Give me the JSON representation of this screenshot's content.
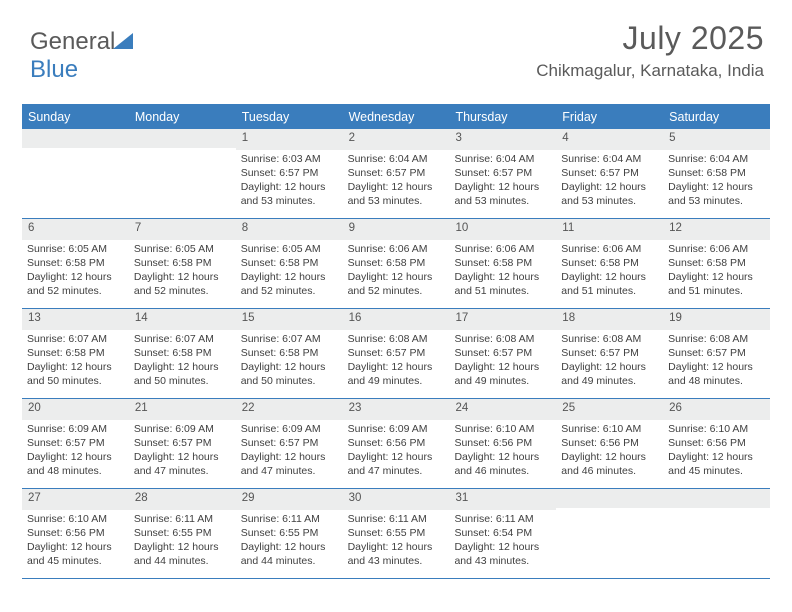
{
  "logo": {
    "text_part1": "General",
    "text_part2": "Blue"
  },
  "header": {
    "month_title": "July 2025",
    "location": "Chikmagalur, Karnataka, India"
  },
  "style": {
    "accent_color": "#3a7dbd",
    "daynum_bg": "#eceded",
    "text_color": "#404040",
    "page_bg": "#ffffff",
    "title_fontsize_pt": 24,
    "location_fontsize_pt": 13,
    "dayhead_fontsize_pt": 9.5,
    "cell_fontsize_pt": 8,
    "columns": 7,
    "rows": 5
  },
  "day_headers": [
    "Sunday",
    "Monday",
    "Tuesday",
    "Wednesday",
    "Thursday",
    "Friday",
    "Saturday"
  ],
  "weeks": [
    [
      {
        "n": "",
        "sr": "",
        "ss": "",
        "dl": ""
      },
      {
        "n": "",
        "sr": "",
        "ss": "",
        "dl": ""
      },
      {
        "n": "1",
        "sr": "Sunrise: 6:03 AM",
        "ss": "Sunset: 6:57 PM",
        "dl": "Daylight: 12 hours and 53 minutes."
      },
      {
        "n": "2",
        "sr": "Sunrise: 6:04 AM",
        "ss": "Sunset: 6:57 PM",
        "dl": "Daylight: 12 hours and 53 minutes."
      },
      {
        "n": "3",
        "sr": "Sunrise: 6:04 AM",
        "ss": "Sunset: 6:57 PM",
        "dl": "Daylight: 12 hours and 53 minutes."
      },
      {
        "n": "4",
        "sr": "Sunrise: 6:04 AM",
        "ss": "Sunset: 6:57 PM",
        "dl": "Daylight: 12 hours and 53 minutes."
      },
      {
        "n": "5",
        "sr": "Sunrise: 6:04 AM",
        "ss": "Sunset: 6:58 PM",
        "dl": "Daylight: 12 hours and 53 minutes."
      }
    ],
    [
      {
        "n": "6",
        "sr": "Sunrise: 6:05 AM",
        "ss": "Sunset: 6:58 PM",
        "dl": "Daylight: 12 hours and 52 minutes."
      },
      {
        "n": "7",
        "sr": "Sunrise: 6:05 AM",
        "ss": "Sunset: 6:58 PM",
        "dl": "Daylight: 12 hours and 52 minutes."
      },
      {
        "n": "8",
        "sr": "Sunrise: 6:05 AM",
        "ss": "Sunset: 6:58 PM",
        "dl": "Daylight: 12 hours and 52 minutes."
      },
      {
        "n": "9",
        "sr": "Sunrise: 6:06 AM",
        "ss": "Sunset: 6:58 PM",
        "dl": "Daylight: 12 hours and 52 minutes."
      },
      {
        "n": "10",
        "sr": "Sunrise: 6:06 AM",
        "ss": "Sunset: 6:58 PM",
        "dl": "Daylight: 12 hours and 51 minutes."
      },
      {
        "n": "11",
        "sr": "Sunrise: 6:06 AM",
        "ss": "Sunset: 6:58 PM",
        "dl": "Daylight: 12 hours and 51 minutes."
      },
      {
        "n": "12",
        "sr": "Sunrise: 6:06 AM",
        "ss": "Sunset: 6:58 PM",
        "dl": "Daylight: 12 hours and 51 minutes."
      }
    ],
    [
      {
        "n": "13",
        "sr": "Sunrise: 6:07 AM",
        "ss": "Sunset: 6:58 PM",
        "dl": "Daylight: 12 hours and 50 minutes."
      },
      {
        "n": "14",
        "sr": "Sunrise: 6:07 AM",
        "ss": "Sunset: 6:58 PM",
        "dl": "Daylight: 12 hours and 50 minutes."
      },
      {
        "n": "15",
        "sr": "Sunrise: 6:07 AM",
        "ss": "Sunset: 6:58 PM",
        "dl": "Daylight: 12 hours and 50 minutes."
      },
      {
        "n": "16",
        "sr": "Sunrise: 6:08 AM",
        "ss": "Sunset: 6:57 PM",
        "dl": "Daylight: 12 hours and 49 minutes."
      },
      {
        "n": "17",
        "sr": "Sunrise: 6:08 AM",
        "ss": "Sunset: 6:57 PM",
        "dl": "Daylight: 12 hours and 49 minutes."
      },
      {
        "n": "18",
        "sr": "Sunrise: 6:08 AM",
        "ss": "Sunset: 6:57 PM",
        "dl": "Daylight: 12 hours and 49 minutes."
      },
      {
        "n": "19",
        "sr": "Sunrise: 6:08 AM",
        "ss": "Sunset: 6:57 PM",
        "dl": "Daylight: 12 hours and 48 minutes."
      }
    ],
    [
      {
        "n": "20",
        "sr": "Sunrise: 6:09 AM",
        "ss": "Sunset: 6:57 PM",
        "dl": "Daylight: 12 hours and 48 minutes."
      },
      {
        "n": "21",
        "sr": "Sunrise: 6:09 AM",
        "ss": "Sunset: 6:57 PM",
        "dl": "Daylight: 12 hours and 47 minutes."
      },
      {
        "n": "22",
        "sr": "Sunrise: 6:09 AM",
        "ss": "Sunset: 6:57 PM",
        "dl": "Daylight: 12 hours and 47 minutes."
      },
      {
        "n": "23",
        "sr": "Sunrise: 6:09 AM",
        "ss": "Sunset: 6:56 PM",
        "dl": "Daylight: 12 hours and 47 minutes."
      },
      {
        "n": "24",
        "sr": "Sunrise: 6:10 AM",
        "ss": "Sunset: 6:56 PM",
        "dl": "Daylight: 12 hours and 46 minutes."
      },
      {
        "n": "25",
        "sr": "Sunrise: 6:10 AM",
        "ss": "Sunset: 6:56 PM",
        "dl": "Daylight: 12 hours and 46 minutes."
      },
      {
        "n": "26",
        "sr": "Sunrise: 6:10 AM",
        "ss": "Sunset: 6:56 PM",
        "dl": "Daylight: 12 hours and 45 minutes."
      }
    ],
    [
      {
        "n": "27",
        "sr": "Sunrise: 6:10 AM",
        "ss": "Sunset: 6:56 PM",
        "dl": "Daylight: 12 hours and 45 minutes."
      },
      {
        "n": "28",
        "sr": "Sunrise: 6:11 AM",
        "ss": "Sunset: 6:55 PM",
        "dl": "Daylight: 12 hours and 44 minutes."
      },
      {
        "n": "29",
        "sr": "Sunrise: 6:11 AM",
        "ss": "Sunset: 6:55 PM",
        "dl": "Daylight: 12 hours and 44 minutes."
      },
      {
        "n": "30",
        "sr": "Sunrise: 6:11 AM",
        "ss": "Sunset: 6:55 PM",
        "dl": "Daylight: 12 hours and 43 minutes."
      },
      {
        "n": "31",
        "sr": "Sunrise: 6:11 AM",
        "ss": "Sunset: 6:54 PM",
        "dl": "Daylight: 12 hours and 43 minutes."
      },
      {
        "n": "",
        "sr": "",
        "ss": "",
        "dl": ""
      },
      {
        "n": "",
        "sr": "",
        "ss": "",
        "dl": ""
      }
    ]
  ]
}
